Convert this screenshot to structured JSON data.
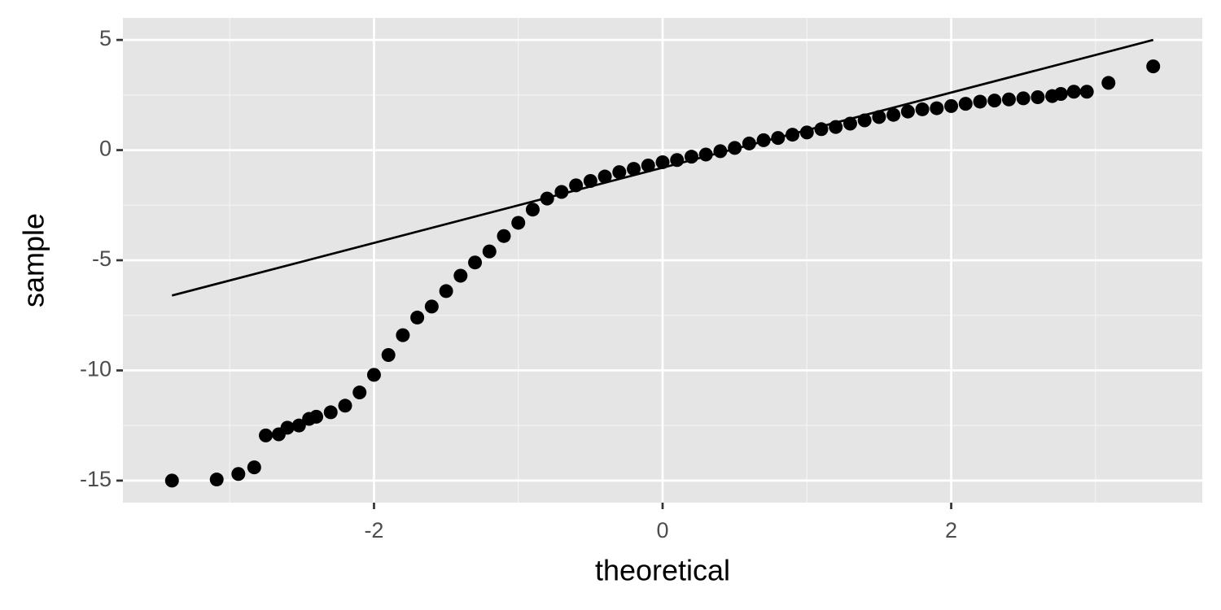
{
  "chart_data": {
    "type": "scatter",
    "x_label": "theoretical",
    "y_label": "sample",
    "x": [
      -3.4,
      -3.09,
      -2.94,
      -2.83,
      -2.75,
      -2.66,
      -2.6,
      -2.52,
      -2.45,
      -2.4,
      -2.3,
      -2.2,
      -2.1,
      -2.0,
      -1.9,
      -1.8,
      -1.7,
      -1.6,
      -1.5,
      -1.4,
      -1.3,
      -1.2,
      -1.1,
      -1.0,
      -0.9,
      -0.8,
      -0.7,
      -0.6,
      -0.5,
      -0.4,
      -0.3,
      -0.2,
      -0.1,
      0.0,
      0.1,
      0.2,
      0.3,
      0.4,
      0.5,
      0.6,
      0.7,
      0.8,
      0.9,
      1.0,
      1.1,
      1.2,
      1.3,
      1.4,
      1.5,
      1.6,
      1.7,
      1.8,
      1.9,
      2.0,
      2.1,
      2.2,
      2.3,
      2.4,
      2.5,
      2.6,
      2.7,
      2.76,
      2.85,
      2.94,
      3.09,
      3.4
    ],
    "values": [
      -15.0,
      -14.95,
      -14.7,
      -14.4,
      -12.95,
      -12.9,
      -12.6,
      -12.5,
      -12.2,
      -12.1,
      -11.9,
      -11.6,
      -11.0,
      -10.2,
      -9.3,
      -8.4,
      -7.6,
      -7.1,
      -6.4,
      -5.7,
      -5.1,
      -4.6,
      -3.9,
      -3.3,
      -2.7,
      -2.2,
      -1.9,
      -1.6,
      -1.4,
      -1.2,
      -1.0,
      -0.85,
      -0.7,
      -0.55,
      -0.45,
      -0.3,
      -0.2,
      -0.05,
      0.1,
      0.3,
      0.45,
      0.55,
      0.7,
      0.8,
      0.95,
      1.05,
      1.2,
      1.35,
      1.5,
      1.6,
      1.75,
      1.85,
      1.9,
      2.0,
      2.1,
      2.2,
      2.25,
      2.3,
      2.35,
      2.4,
      2.45,
      2.55,
      2.65,
      2.65,
      3.05,
      3.8
    ],
    "color": "#000000",
    "reference_line": {
      "x": [
        -3.4,
        3.4
      ],
      "y": [
        -6.6,
        5.0
      ]
    },
    "xlim": [
      -3.74,
      3.74
    ],
    "ylim": [
      -16.0,
      6.0
    ],
    "xticks": [
      -2,
      0,
      2
    ],
    "yticks": [
      -15,
      -10,
      -5,
      0,
      5
    ],
    "x_minor_ticks": [
      -3,
      -1,
      1,
      3
    ],
    "y_minor_ticks": [
      -12.5,
      -7.5,
      -2.5,
      2.5
    ],
    "grid": true
  }
}
